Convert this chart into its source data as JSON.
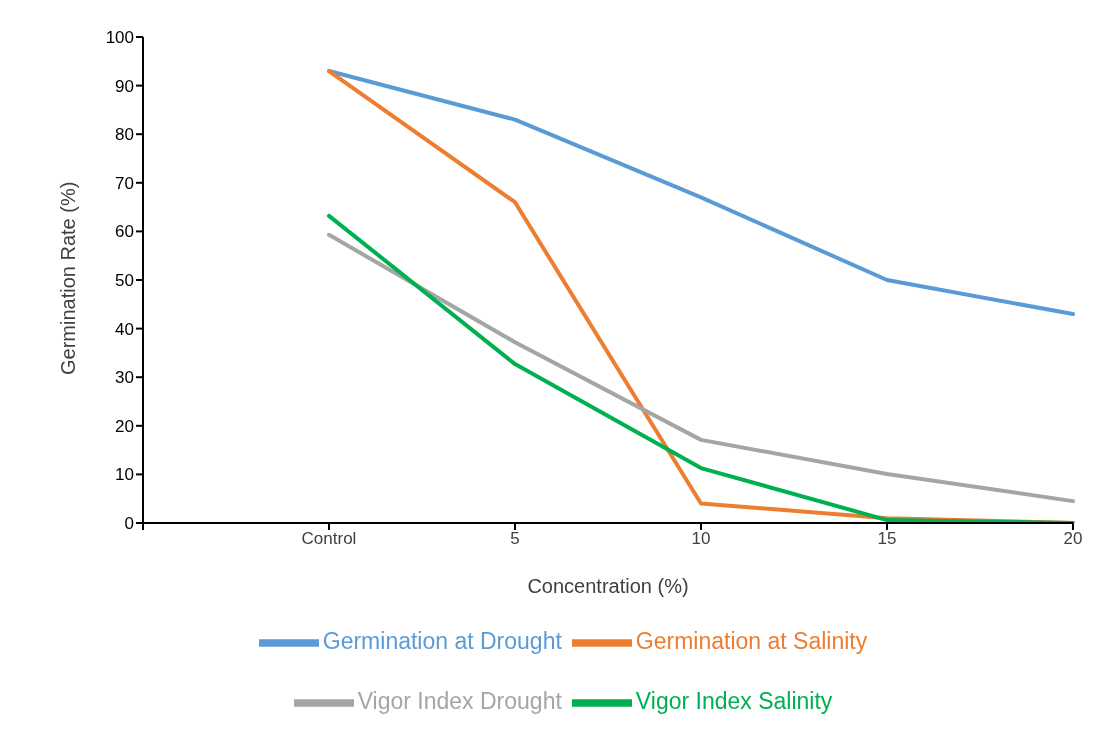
{
  "chart_data": {
    "type": "line",
    "xlabel": "Concentration (%)",
    "ylabel": "Germination Rate (%)",
    "categories": [
      null,
      "Control",
      "5",
      "10",
      "15",
      "20"
    ],
    "series": [
      {
        "name": "Germination at Drought",
        "color": "#5b9bd5",
        "values": [
          null,
          93,
          83,
          67,
          50,
          43
        ]
      },
      {
        "name": "Germination at Salinity",
        "color": "#ed7d31",
        "values": [
          null,
          93,
          66,
          4,
          1,
          0
        ]
      },
      {
        "name": "Vigor Index Drought",
        "color": "#a5a5a5",
        "values": [
          null,
          59.3,
          37.2,
          17.1,
          10.1,
          4.5
        ]
      },
      {
        "name": "Vigor Index Salinity",
        "color": "#00b050",
        "values": [
          null,
          63.2,
          32.7,
          11.3,
          0.6,
          0
        ]
      }
    ],
    "ylim": [
      0,
      100
    ],
    "yticks": [
      0,
      10,
      20,
      30,
      40,
      50,
      60,
      70,
      80,
      90,
      100
    ],
    "grid": false,
    "legend": "bottom",
    "marker": "none",
    "line_style": "solid"
  }
}
